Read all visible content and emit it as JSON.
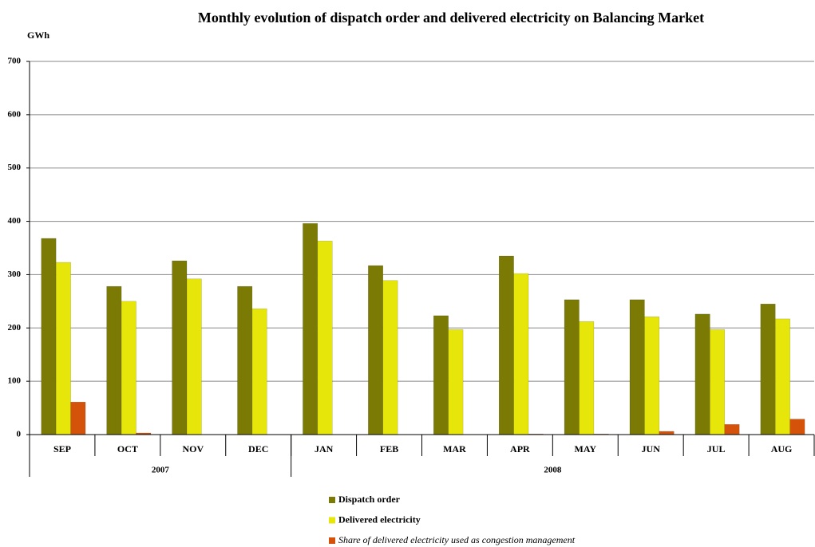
{
  "chart_data": {
    "type": "bar",
    "title": "Monthly evolution of dispatch order and delivered electricity on Balancing Market",
    "y_label": "GWh",
    "category_groups": [
      {
        "label": "2007",
        "categories": [
          "SEP",
          "OCT",
          "NOV",
          "DEC"
        ]
      },
      {
        "label": "2008",
        "categories": [
          "JAN",
          "FEB",
          "MAR",
          "APR",
          "MAY",
          "JUN",
          "JUL",
          "AUG"
        ]
      }
    ],
    "series": [
      {
        "name": "Dispatch order",
        "color": "#7a7a05",
        "values": [
          368,
          278,
          326,
          278,
          396,
          317,
          223,
          335,
          253,
          253,
          226,
          245
        ]
      },
      {
        "name": "Delivered electricity",
        "color": "#e6e60a",
        "values": [
          323,
          250,
          292,
          236,
          363,
          289,
          197,
          302,
          212,
          221,
          197,
          217
        ]
      },
      {
        "name": "Share of delivered electricity used as congestion management",
        "color": "#d4520a",
        "values": [
          61,
          3,
          0,
          0,
          0,
          0,
          0,
          1,
          1,
          6,
          19,
          29
        ]
      }
    ],
    "ylim": [
      0,
      700
    ],
    "yticks": [
      0,
      100,
      200,
      300,
      400,
      500,
      600,
      700
    ],
    "grid": true
  }
}
